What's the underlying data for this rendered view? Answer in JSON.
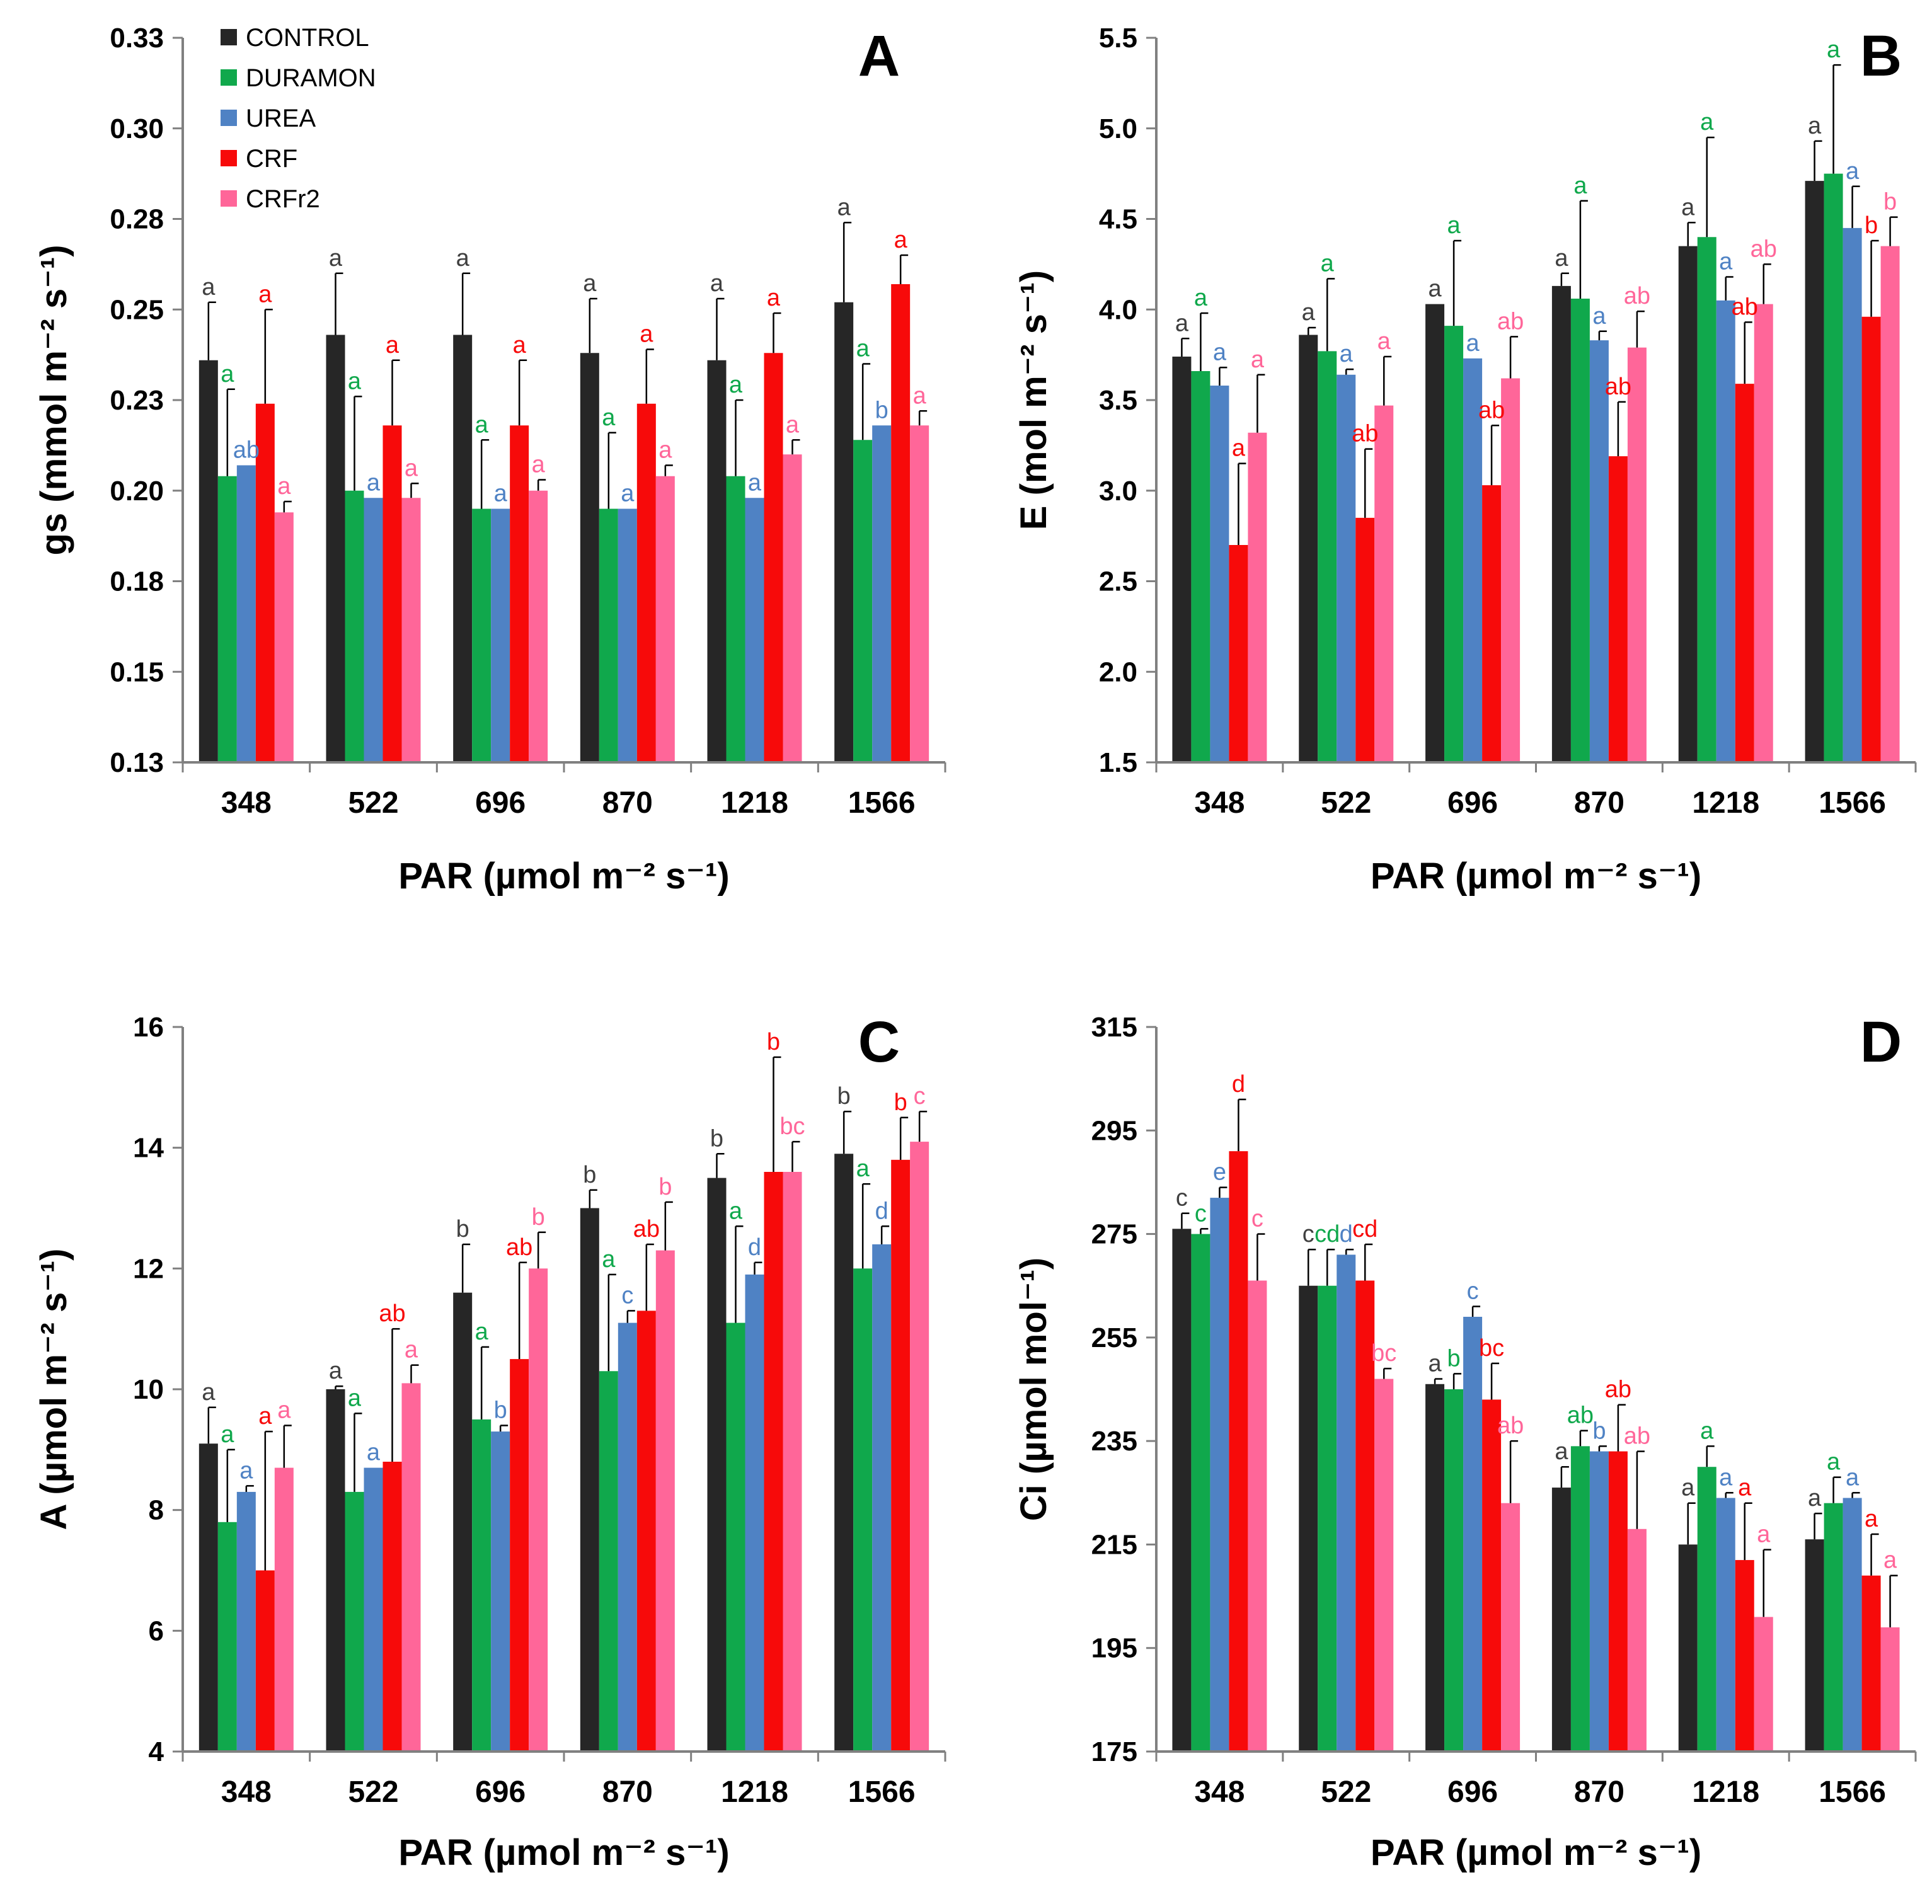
{
  "legend": {
    "series": [
      {
        "name": "CONTROL",
        "color": "#262626"
      },
      {
        "name": "DURAMON",
        "color": "#10A84C"
      },
      {
        "name": "UREA",
        "color": "#4F82C4"
      },
      {
        "name": "CRF",
        "color": "#F70A0A"
      },
      {
        "name": "CRFr2",
        "color": "#FF6699"
      }
    ]
  },
  "chart_data": [
    {
      "panel": "A",
      "type": "bar",
      "title": "",
      "xlabel": "PAR (µmol m⁻² s⁻¹)",
      "ylabel": "gs (mmol m⁻² s⁻¹)",
      "ylim": [
        0.125,
        0.325
      ],
      "yticks": [
        0.125,
        0.15,
        0.175,
        0.2,
        0.225,
        0.25,
        0.275,
        0.3,
        0.325
      ],
      "ytick_labels": [
        "0.13",
        "0.15",
        "0.18",
        "0.20",
        "0.23",
        "0.25",
        "0.28",
        "0.30",
        "0.33"
      ],
      "categories": [
        "348",
        "522",
        "696",
        "870",
        "1218",
        "1566"
      ],
      "series": [
        {
          "name": "CONTROL",
          "values": [
            0.236,
            0.243,
            0.243,
            0.238,
            0.236,
            0.252
          ],
          "errors": [
            0.016,
            0.017,
            0.017,
            0.015,
            0.017,
            0.022
          ],
          "sig": [
            "a",
            "a",
            "a",
            "a",
            "a",
            "a"
          ]
        },
        {
          "name": "DURAMON",
          "values": [
            0.204,
            0.2,
            0.195,
            0.195,
            0.204,
            0.214
          ],
          "errors": [
            0.024,
            0.026,
            0.019,
            0.021,
            0.021,
            0.021
          ],
          "sig": [
            "a",
            "a",
            "a",
            "a",
            "a",
            "a"
          ]
        },
        {
          "name": "UREA",
          "values": [
            0.207,
            0.198,
            0.195,
            0.195,
            0.198,
            0.218
          ],
          "errors": [
            0.0,
            0.0,
            0.0,
            0.0,
            0.0,
            0.0
          ],
          "sig": [
            "ab",
            "a",
            "a",
            "a",
            "a",
            "b"
          ]
        },
        {
          "name": "CRF",
          "values": [
            0.224,
            0.218,
            0.218,
            0.224,
            0.238,
            0.257
          ],
          "errors": [
            0.026,
            0.018,
            0.018,
            0.015,
            0.011,
            0.008
          ],
          "sig": [
            "a",
            "a",
            "a",
            "a",
            "a",
            "a"
          ]
        },
        {
          "name": "CRFr2",
          "values": [
            0.194,
            0.198,
            0.2,
            0.204,
            0.21,
            0.218
          ],
          "errors": [
            0.003,
            0.004,
            0.003,
            0.003,
            0.004,
            0.004
          ],
          "sig": [
            "a",
            "a",
            "a",
            "a",
            "a",
            "a"
          ]
        }
      ]
    },
    {
      "panel": "B",
      "type": "bar",
      "title": "",
      "xlabel": "PAR (µmol m⁻² s⁻¹)",
      "ylabel": "E (mol m⁻² s⁻¹)",
      "ylim": [
        1.5,
        5.5
      ],
      "yticks": [
        1.5,
        2.0,
        2.5,
        3.0,
        3.5,
        4.0,
        4.5,
        5.0,
        5.5
      ],
      "ytick_labels": [
        "1.5",
        "2.0",
        "2.5",
        "3.0",
        "3.5",
        "4.0",
        "4.5",
        "5.0",
        "5.5"
      ],
      "categories": [
        "348",
        "522",
        "696",
        "870",
        "1218",
        "1566"
      ],
      "series": [
        {
          "name": "CONTROL",
          "values": [
            3.74,
            3.86,
            4.03,
            4.13,
            4.35,
            4.71
          ],
          "errors": [
            0.1,
            0.04,
            0.0,
            0.07,
            0.13,
            0.22
          ],
          "sig": [
            "a",
            "a",
            "a",
            "a",
            "a",
            "a"
          ]
        },
        {
          "name": "DURAMON",
          "values": [
            3.66,
            3.77,
            3.91,
            4.06,
            4.4,
            4.75
          ],
          "errors": [
            0.32,
            0.4,
            0.47,
            0.54,
            0.55,
            0.6
          ],
          "sig": [
            "a",
            "a",
            "a",
            "a",
            "a",
            "a"
          ]
        },
        {
          "name": "UREA",
          "values": [
            3.58,
            3.64,
            3.73,
            3.83,
            4.05,
            4.45
          ],
          "errors": [
            0.1,
            0.03,
            0.0,
            0.05,
            0.13,
            0.23
          ],
          "sig": [
            "a",
            "a",
            "a",
            "a",
            "a",
            "a"
          ]
        },
        {
          "name": "CRF",
          "values": [
            2.7,
            2.85,
            3.03,
            3.19,
            3.59,
            3.96
          ],
          "errors": [
            0.45,
            0.38,
            0.33,
            0.3,
            0.34,
            0.42
          ],
          "sig": [
            "a",
            "ab",
            "ab",
            "ab",
            "ab",
            "b"
          ]
        },
        {
          "name": "CRFr2",
          "values": [
            3.32,
            3.47,
            3.62,
            3.79,
            4.03,
            4.35
          ],
          "errors": [
            0.32,
            0.27,
            0.23,
            0.2,
            0.22,
            0.16
          ],
          "sig": [
            "a",
            "a",
            "ab",
            "ab",
            "ab",
            "b"
          ]
        }
      ]
    },
    {
      "panel": "C",
      "type": "bar",
      "title": "",
      "xlabel": "PAR (µmol m⁻² s⁻¹)",
      "ylabel": "A (µmol m⁻² s⁻¹)",
      "ylim": [
        4,
        16
      ],
      "yticks": [
        4,
        6,
        8,
        10,
        12,
        14,
        16
      ],
      "ytick_labels": [
        "4",
        "6",
        "8",
        "10",
        "12",
        "14",
        "16"
      ],
      "categories": [
        "348",
        "522",
        "696",
        "870",
        "1218",
        "1566"
      ],
      "series": [
        {
          "name": "CONTROL",
          "values": [
            9.1,
            10.0,
            11.6,
            13.0,
            13.5,
            13.9
          ],
          "errors": [
            0.6,
            0.05,
            0.8,
            0.3,
            0.4,
            0.7
          ],
          "sig": [
            "a",
            "a",
            "b",
            "b",
            "b",
            "b"
          ]
        },
        {
          "name": "DURAMON",
          "values": [
            7.8,
            8.3,
            9.5,
            10.3,
            11.1,
            12.0
          ],
          "errors": [
            1.2,
            1.3,
            1.2,
            1.6,
            1.6,
            1.4
          ],
          "sig": [
            "a",
            "a",
            "a",
            "a",
            "a",
            "a"
          ]
        },
        {
          "name": "UREA",
          "values": [
            8.3,
            8.7,
            9.3,
            11.1,
            11.9,
            12.4
          ],
          "errors": [
            0.1,
            0.0,
            0.1,
            0.2,
            0.2,
            0.3
          ],
          "sig": [
            "a",
            "a",
            "b",
            "c",
            "d",
            "d"
          ]
        },
        {
          "name": "CRF",
          "values": [
            7.0,
            8.8,
            10.5,
            11.3,
            13.6,
            13.8
          ],
          "errors": [
            2.3,
            2.2,
            1.6,
            1.1,
            1.9,
            0.7
          ],
          "sig": [
            "a",
            "ab",
            "ab",
            "ab",
            "b",
            "b"
          ]
        },
        {
          "name": "CRFr2",
          "values": [
            8.7,
            10.1,
            12.0,
            12.3,
            13.6,
            14.1
          ],
          "errors": [
            0.7,
            0.3,
            0.6,
            0.8,
            0.5,
            0.5
          ],
          "sig": [
            "a",
            "a",
            "b",
            "b",
            "bc",
            "c"
          ]
        }
      ]
    },
    {
      "panel": "D",
      "type": "bar",
      "title": "",
      "xlabel": "PAR (µmol m⁻² s⁻¹)",
      "ylabel": "Ci (µmol mol⁻¹)",
      "ylim": [
        175,
        315
      ],
      "yticks": [
        175,
        195,
        215,
        235,
        255,
        275,
        295,
        315
      ],
      "ytick_labels": [
        "175",
        "195",
        "215",
        "235",
        "255",
        "275",
        "295",
        "315"
      ],
      "categories": [
        "348",
        "522",
        "696",
        "870",
        "1218",
        "1566"
      ],
      "series": [
        {
          "name": "CONTROL",
          "values": [
            276,
            265,
            246,
            226,
            215,
            216
          ],
          "errors": [
            3,
            7,
            1,
            4,
            8,
            5
          ],
          "sig": [
            "c",
            "c",
            "a",
            "a",
            "a",
            "a"
          ]
        },
        {
          "name": "DURAMON",
          "values": [
            275,
            265,
            245,
            234,
            230,
            223
          ],
          "errors": [
            1,
            7,
            3,
            3,
            4,
            5
          ],
          "sig": [
            "c",
            "cd",
            "b",
            "ab",
            "a",
            "a"
          ]
        },
        {
          "name": "UREA",
          "values": [
            282,
            271,
            259,
            233,
            224,
            224
          ],
          "errors": [
            2,
            1,
            2,
            1,
            1,
            1
          ],
          "sig": [
            "e",
            "d",
            "c",
            "b",
            "a",
            "a"
          ]
        },
        {
          "name": "CRF",
          "values": [
            291,
            266,
            243,
            233,
            212,
            209
          ],
          "errors": [
            10,
            7,
            7,
            9,
            11,
            8
          ],
          "sig": [
            "d",
            "cd",
            "bc",
            "ab",
            "a",
            "a"
          ]
        },
        {
          "name": "CRFr2",
          "values": [
            266,
            247,
            223,
            218,
            201,
            199
          ],
          "errors": [
            9,
            2,
            12,
            15,
            13,
            10
          ],
          "sig": [
            "c",
            "bc",
            "ab",
            "ab",
            "a",
            "a"
          ]
        }
      ]
    }
  ]
}
